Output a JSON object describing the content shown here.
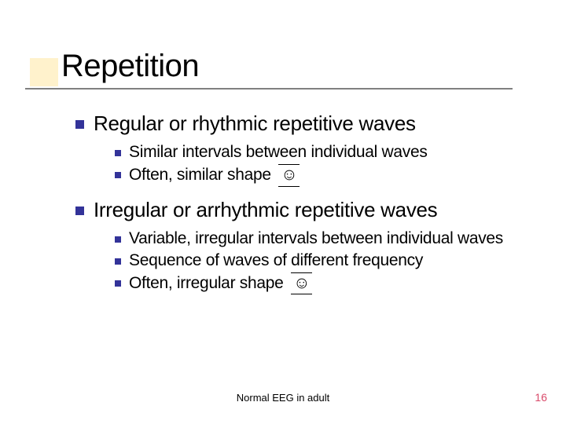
{
  "slide": {
    "title": "Repetition",
    "accent_color": "#fff2cc",
    "rule_color": "#808080",
    "bullet_color": "#333399",
    "title_fontsize": 40,
    "lvl1_fontsize": 26,
    "lvl2_fontsize": 21,
    "background_color": "#ffffff",
    "items": [
      {
        "text": "Regular or rhythmic repetitive waves",
        "sub": [
          {
            "text": "Similar intervals between individual waves",
            "smiley": false
          },
          {
            "text": "Often, similar shape",
            "smiley": true
          }
        ]
      },
      {
        "text": "Irregular or arrhythmic repetitive waves",
        "sub": [
          {
            "text": "Variable, irregular intervals between individual waves",
            "smiley": false
          },
          {
            "text": "Sequence of waves of different frequency",
            "smiley": false
          },
          {
            "text": "Often, irregular shape",
            "smiley": true
          }
        ]
      }
    ],
    "smiley_glyph": "☺",
    "footer": {
      "center": "Normal EEG in adult",
      "page_number": "16",
      "page_color": "#d94a6a"
    }
  }
}
